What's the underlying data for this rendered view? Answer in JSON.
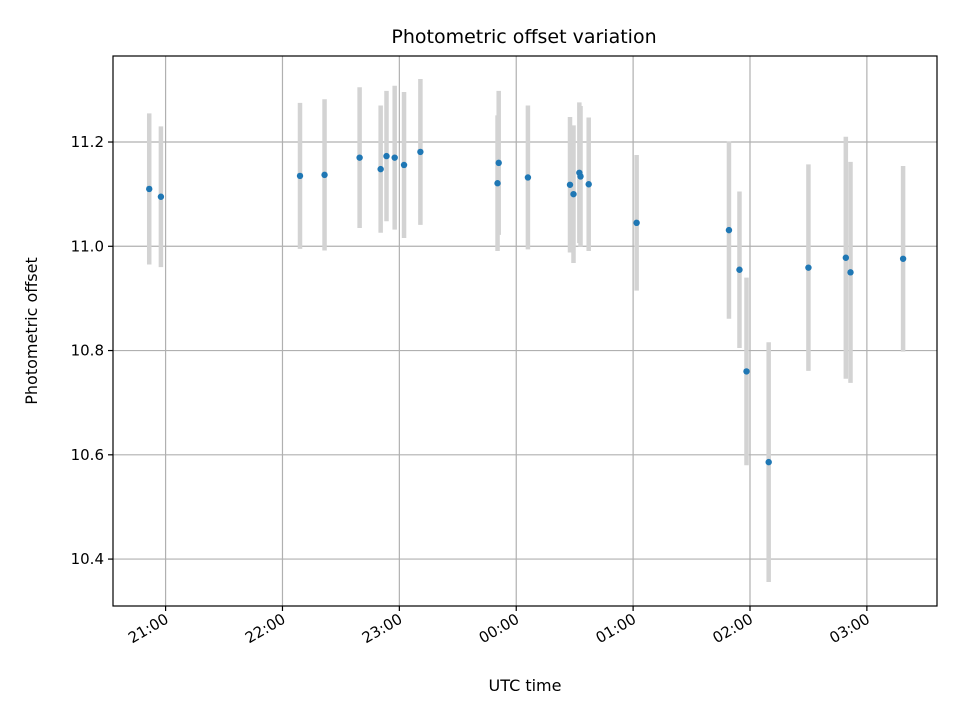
{
  "chart_data": {
    "type": "scatter",
    "title": "Photometric offset variation",
    "xlabel": "UTC time",
    "ylabel": "Photometric offset",
    "x_unit": "hours (UTC, continuing past midnight)",
    "xlim": [
      20.55,
      27.6
    ],
    "ylim": [
      10.31,
      11.365
    ],
    "x_ticks": [
      {
        "value": 21,
        "label": "21:00"
      },
      {
        "value": 22,
        "label": "22:00"
      },
      {
        "value": 23,
        "label": "23:00"
      },
      {
        "value": 24,
        "label": "00:00"
      },
      {
        "value": 25,
        "label": "01:00"
      },
      {
        "value": 26,
        "label": "02:00"
      },
      {
        "value": 27,
        "label": "03:00"
      }
    ],
    "y_ticks": [
      {
        "value": 10.4,
        "label": "10.4"
      },
      {
        "value": 10.6,
        "label": "10.6"
      },
      {
        "value": 10.8,
        "label": "10.8"
      },
      {
        "value": 11.0,
        "label": "11.0"
      },
      {
        "value": 11.2,
        "label": "11.2"
      }
    ],
    "grid": true,
    "marker_color": "#1f77b4",
    "errorbar_color": "#d3d3d3",
    "points": [
      {
        "x": 20.86,
        "y": 11.11,
        "err": 0.145
      },
      {
        "x": 20.96,
        "y": 11.095,
        "err": 0.135
      },
      {
        "x": 22.15,
        "y": 11.135,
        "err": 0.14
      },
      {
        "x": 22.36,
        "y": 11.137,
        "err": 0.145
      },
      {
        "x": 22.66,
        "y": 11.17,
        "err": 0.135
      },
      {
        "x": 22.84,
        "y": 11.148,
        "err": 0.122
      },
      {
        "x": 22.89,
        "y": 11.173,
        "err": 0.125
      },
      {
        "x": 22.96,
        "y": 11.17,
        "err": 0.138
      },
      {
        "x": 23.04,
        "y": 11.156,
        "err": 0.14
      },
      {
        "x": 23.18,
        "y": 11.181,
        "err": 0.14
      },
      {
        "x": 23.84,
        "y": 11.121,
        "err": 0.13
      },
      {
        "x": 23.85,
        "y": 11.16,
        "err": 0.138
      },
      {
        "x": 24.1,
        "y": 11.132,
        "err": 0.138
      },
      {
        "x": 24.46,
        "y": 11.118,
        "err": 0.13
      },
      {
        "x": 24.49,
        "y": 11.1,
        "err": 0.132
      },
      {
        "x": 24.54,
        "y": 11.141,
        "err": 0.135
      },
      {
        "x": 24.55,
        "y": 11.134,
        "err": 0.135
      },
      {
        "x": 24.62,
        "y": 11.119,
        "err": 0.128
      },
      {
        "x": 25.03,
        "y": 11.045,
        "err": 0.13
      },
      {
        "x": 25.82,
        "y": 11.031,
        "err": 0.17
      },
      {
        "x": 25.91,
        "y": 10.955,
        "err": 0.15
      },
      {
        "x": 25.97,
        "y": 10.76,
        "err": 0.18
      },
      {
        "x": 26.16,
        "y": 10.586,
        "err": 0.23
      },
      {
        "x": 26.5,
        "y": 10.959,
        "err": 0.198
      },
      {
        "x": 26.82,
        "y": 10.978,
        "err": 0.232
      },
      {
        "x": 26.86,
        "y": 10.95,
        "err": 0.212
      },
      {
        "x": 27.31,
        "y": 10.976,
        "err": 0.178
      }
    ]
  }
}
